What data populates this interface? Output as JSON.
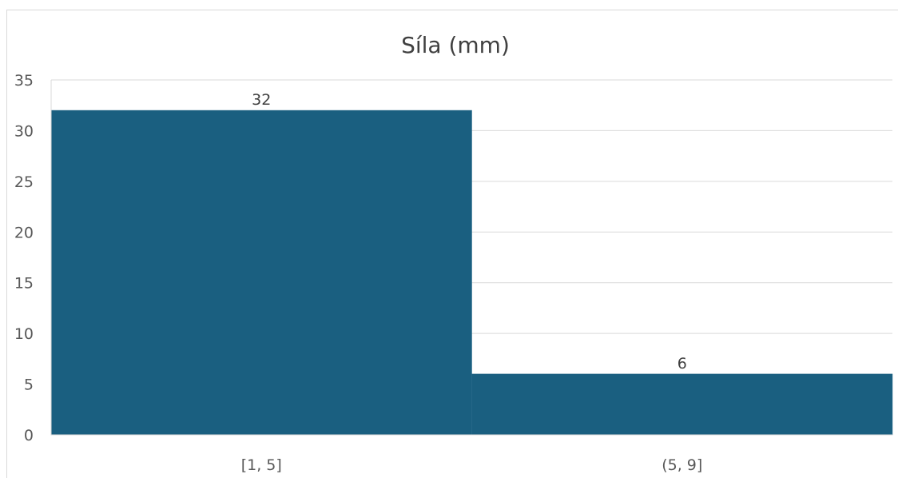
{
  "chart_data": {
    "type": "bar",
    "title": "Síla (mm)",
    "categories": [
      "[1, 5]",
      "(5, 9]"
    ],
    "values": [
      32,
      6
    ],
    "ylim": [
      0,
      35
    ],
    "yticks": [
      0,
      5,
      10,
      15,
      20,
      25,
      30,
      35
    ],
    "xlabel": "",
    "ylabel": "",
    "grid": true,
    "legend": "none",
    "data_labels": true,
    "bar_color": "#1a5f80",
    "grid_color": "#d9d9d9"
  }
}
